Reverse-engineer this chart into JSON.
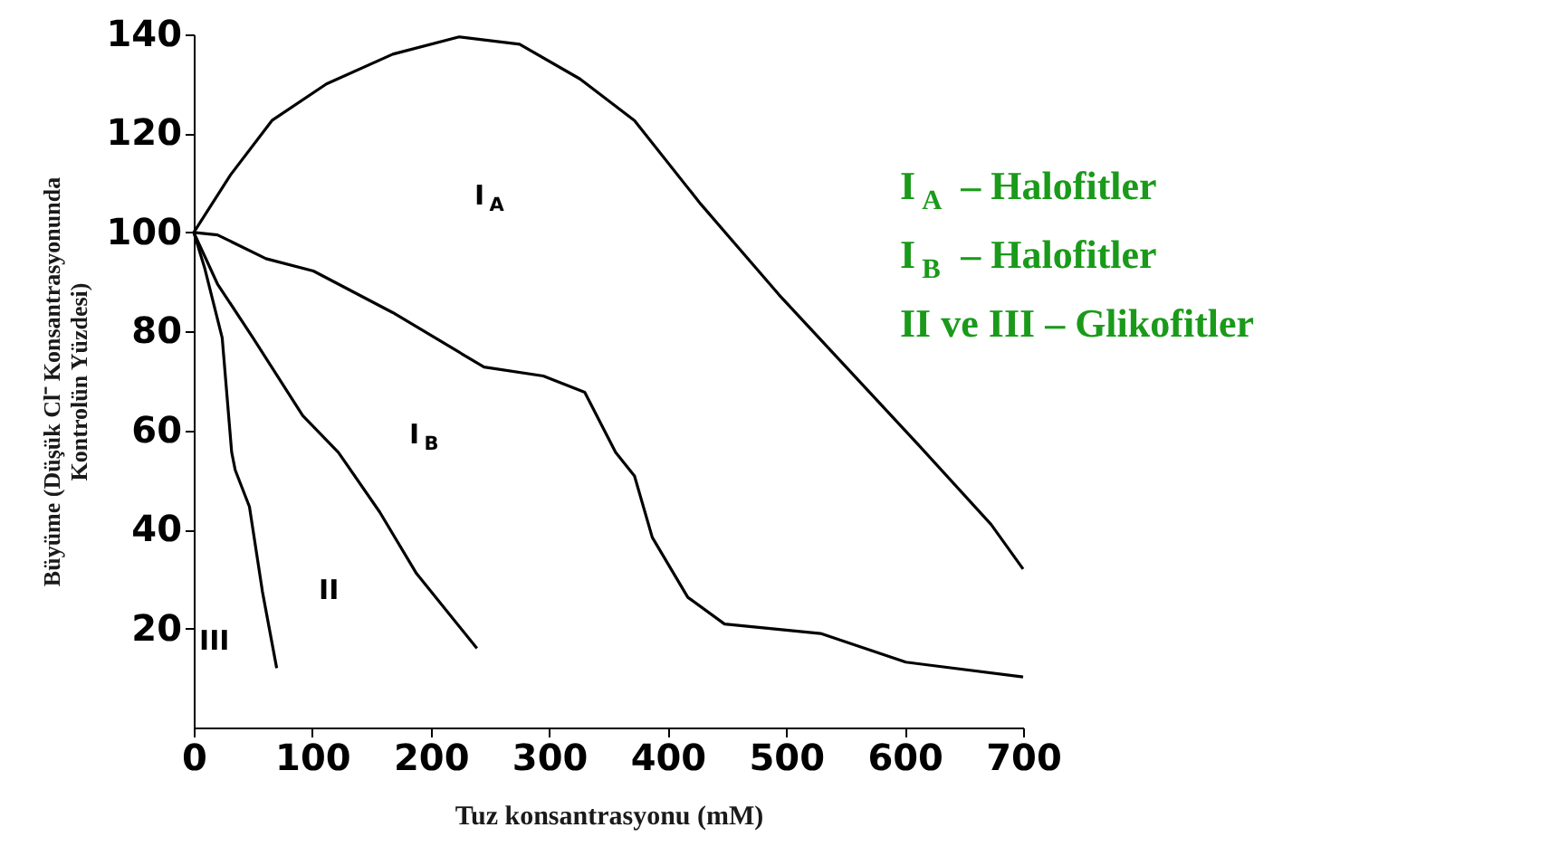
{
  "chart_data": {
    "type": "line",
    "xlabel": "Tuz konsantrasyonu (mM)",
    "ylabel": "Büyüme (Düşük Cl⁻ Konsantrasyonunda Kontrolün Yüzdesi)",
    "xlim": [
      0,
      700
    ],
    "ylim": [
      0,
      140
    ],
    "xticks": [
      0,
      100,
      200,
      300,
      400,
      500,
      600,
      700
    ],
    "yticks": [
      20,
      40,
      60,
      80,
      100,
      120,
      140
    ],
    "grid": false,
    "marker": "none",
    "line_style": "solid",
    "series": [
      {
        "color": "#000000",
        "x": [
          0,
          31,
          66,
          112,
          168,
          224,
          275,
          326,
          372,
          428,
          494,
          612,
          673,
          700
        ],
        "values": [
          100,
          111.6,
          122.6,
          130,
          136,
          139.5,
          138,
          131,
          122.6,
          105.7,
          87.4,
          57,
          41,
          32
        ]
      },
      {
        "color": "#000000",
        "x": [
          0,
          20,
          61,
          101,
          168,
          245,
          295,
          330,
          356,
          372,
          387,
          417,
          448,
          529,
          601,
          700
        ],
        "values": [
          100,
          99.5,
          94.7,
          92.2,
          83.8,
          72.8,
          71,
          67.7,
          55.6,
          50.8,
          38.4,
          26.3,
          20.9,
          19,
          13.2,
          10.2
        ]
      },
      {
        "color": "#000000",
        "x": [
          0,
          20,
          50,
          92,
          122,
          157,
          188,
          239
        ],
        "values": [
          100,
          89.6,
          78.7,
          63,
          55.6,
          43.5,
          31.1,
          16
        ]
      },
      {
        "color": "#000000",
        "x": [
          0,
          9,
          24,
          32,
          35,
          47,
          58,
          70
        ],
        "values": [
          100,
          93,
          78.7,
          55.6,
          52,
          44.6,
          27.4,
          12
        ]
      }
    ],
    "annotations": [
      "I$_{A}$",
      "I$_{B}$",
      "II",
      "III",
      "I$_{A}$ – Halofitler",
      "I$_{B}$ – Halofitler",
      "II   ve   III – Glikofitler"
    ]
  }
}
